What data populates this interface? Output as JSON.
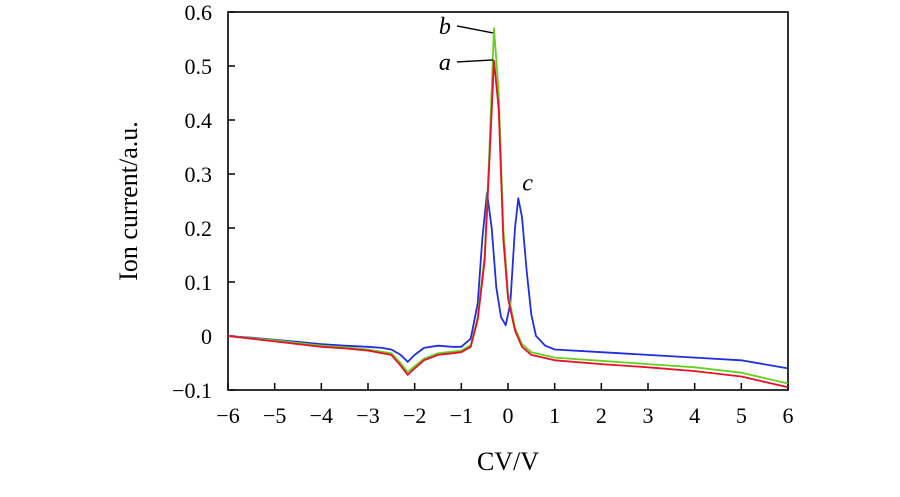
{
  "chart_data": {
    "type": "line",
    "title": "",
    "xlabel": "CV/V",
    "ylabel": "Ion current/a.u.",
    "xlim": [
      -6,
      6
    ],
    "ylim": [
      -0.1,
      0.6
    ],
    "x_ticks": [
      -6,
      -5,
      -4,
      -3,
      -2,
      -1,
      0,
      1,
      2,
      3,
      4,
      5,
      6
    ],
    "x_tick_labels": [
      "−6",
      "−5",
      "−4",
      "−3",
      "−2",
      "−1",
      "0",
      "1",
      "2",
      "3",
      "4",
      "5",
      "6"
    ],
    "y_ticks": [
      -0.1,
      0,
      0.1,
      0.2,
      0.3,
      0.4,
      0.5,
      0.6
    ],
    "y_tick_labels": [
      "−0.1",
      "0",
      "0.1",
      "0.2",
      "0.3",
      "0.4",
      "0.5",
      "0.6"
    ],
    "grid": false,
    "legend": "none",
    "series": [
      {
        "label": "a",
        "color": "#e8102a",
        "points": [
          [
            -6.0,
            0.0
          ],
          [
            -5.5,
            -0.005
          ],
          [
            -5.0,
            -0.01
          ],
          [
            -4.5,
            -0.015
          ],
          [
            -4.0,
            -0.02
          ],
          [
            -3.5,
            -0.023
          ],
          [
            -3.0,
            -0.027
          ],
          [
            -2.5,
            -0.035
          ],
          [
            -2.3,
            -0.055
          ],
          [
            -2.15,
            -0.072
          ],
          [
            -2.0,
            -0.06
          ],
          [
            -1.8,
            -0.045
          ],
          [
            -1.5,
            -0.035
          ],
          [
            -1.2,
            -0.032
          ],
          [
            -1.0,
            -0.03
          ],
          [
            -0.8,
            -0.02
          ],
          [
            -0.65,
            0.03
          ],
          [
            -0.5,
            0.14
          ],
          [
            -0.4,
            0.32
          ],
          [
            -0.3,
            0.51
          ],
          [
            -0.2,
            0.42
          ],
          [
            -0.1,
            0.18
          ],
          [
            0.0,
            0.07
          ],
          [
            0.15,
            0.01
          ],
          [
            0.3,
            -0.02
          ],
          [
            0.5,
            -0.035
          ],
          [
            1.0,
            -0.045
          ],
          [
            2.0,
            -0.052
          ],
          [
            3.0,
            -0.058
          ],
          [
            4.0,
            -0.065
          ],
          [
            5.0,
            -0.075
          ],
          [
            6.0,
            -0.095
          ]
        ]
      },
      {
        "label": "b",
        "color": "#66d020",
        "points": [
          [
            -6.0,
            0.0
          ],
          [
            -5.5,
            -0.004
          ],
          [
            -5.0,
            -0.008
          ],
          [
            -4.5,
            -0.013
          ],
          [
            -4.0,
            -0.018
          ],
          [
            -3.5,
            -0.021
          ],
          [
            -3.0,
            -0.025
          ],
          [
            -2.5,
            -0.032
          ],
          [
            -2.3,
            -0.05
          ],
          [
            -2.15,
            -0.067
          ],
          [
            -2.0,
            -0.056
          ],
          [
            -1.8,
            -0.042
          ],
          [
            -1.5,
            -0.032
          ],
          [
            -1.2,
            -0.029
          ],
          [
            -1.0,
            -0.027
          ],
          [
            -0.8,
            -0.017
          ],
          [
            -0.65,
            0.035
          ],
          [
            -0.5,
            0.15
          ],
          [
            -0.4,
            0.34
          ],
          [
            -0.3,
            0.57
          ],
          [
            -0.2,
            0.45
          ],
          [
            -0.1,
            0.2
          ],
          [
            0.0,
            0.08
          ],
          [
            0.15,
            0.015
          ],
          [
            0.3,
            -0.015
          ],
          [
            0.5,
            -0.03
          ],
          [
            1.0,
            -0.04
          ],
          [
            2.0,
            -0.046
          ],
          [
            3.0,
            -0.052
          ],
          [
            4.0,
            -0.058
          ],
          [
            5.0,
            -0.068
          ],
          [
            6.0,
            -0.088
          ]
        ]
      },
      {
        "label": "c",
        "color": "#1f2fe0",
        "points": [
          [
            -6.0,
            0.0
          ],
          [
            -5.5,
            -0.003
          ],
          [
            -5.0,
            -0.007
          ],
          [
            -4.5,
            -0.011
          ],
          [
            -4.0,
            -0.015
          ],
          [
            -3.5,
            -0.018
          ],
          [
            -3.0,
            -0.02
          ],
          [
            -2.7,
            -0.022
          ],
          [
            -2.5,
            -0.025
          ],
          [
            -2.3,
            -0.035
          ],
          [
            -2.15,
            -0.048
          ],
          [
            -2.0,
            -0.035
          ],
          [
            -1.8,
            -0.022
          ],
          [
            -1.5,
            -0.018
          ],
          [
            -1.2,
            -0.02
          ],
          [
            -1.0,
            -0.02
          ],
          [
            -0.8,
            -0.005
          ],
          [
            -0.65,
            0.06
          ],
          [
            -0.55,
            0.18
          ],
          [
            -0.45,
            0.265
          ],
          [
            -0.35,
            0.2
          ],
          [
            -0.25,
            0.09
          ],
          [
            -0.15,
            0.035
          ],
          [
            -0.05,
            0.02
          ],
          [
            0.05,
            0.06
          ],
          [
            0.15,
            0.2
          ],
          [
            0.22,
            0.255
          ],
          [
            0.3,
            0.22
          ],
          [
            0.4,
            0.12
          ],
          [
            0.5,
            0.04
          ],
          [
            0.6,
            0.0
          ],
          [
            0.8,
            -0.018
          ],
          [
            1.0,
            -0.025
          ],
          [
            2.0,
            -0.03
          ],
          [
            3.0,
            -0.035
          ],
          [
            4.0,
            -0.04
          ],
          [
            5.0,
            -0.045
          ],
          [
            6.0,
            -0.06
          ]
        ]
      }
    ],
    "annotations": [
      {
        "text": "b",
        "x": -0.28,
        "y": 0.565
      },
      {
        "text": "a",
        "x": -0.28,
        "y": 0.515
      },
      {
        "text": "c",
        "x": 0.22,
        "y": 0.255
      }
    ]
  }
}
